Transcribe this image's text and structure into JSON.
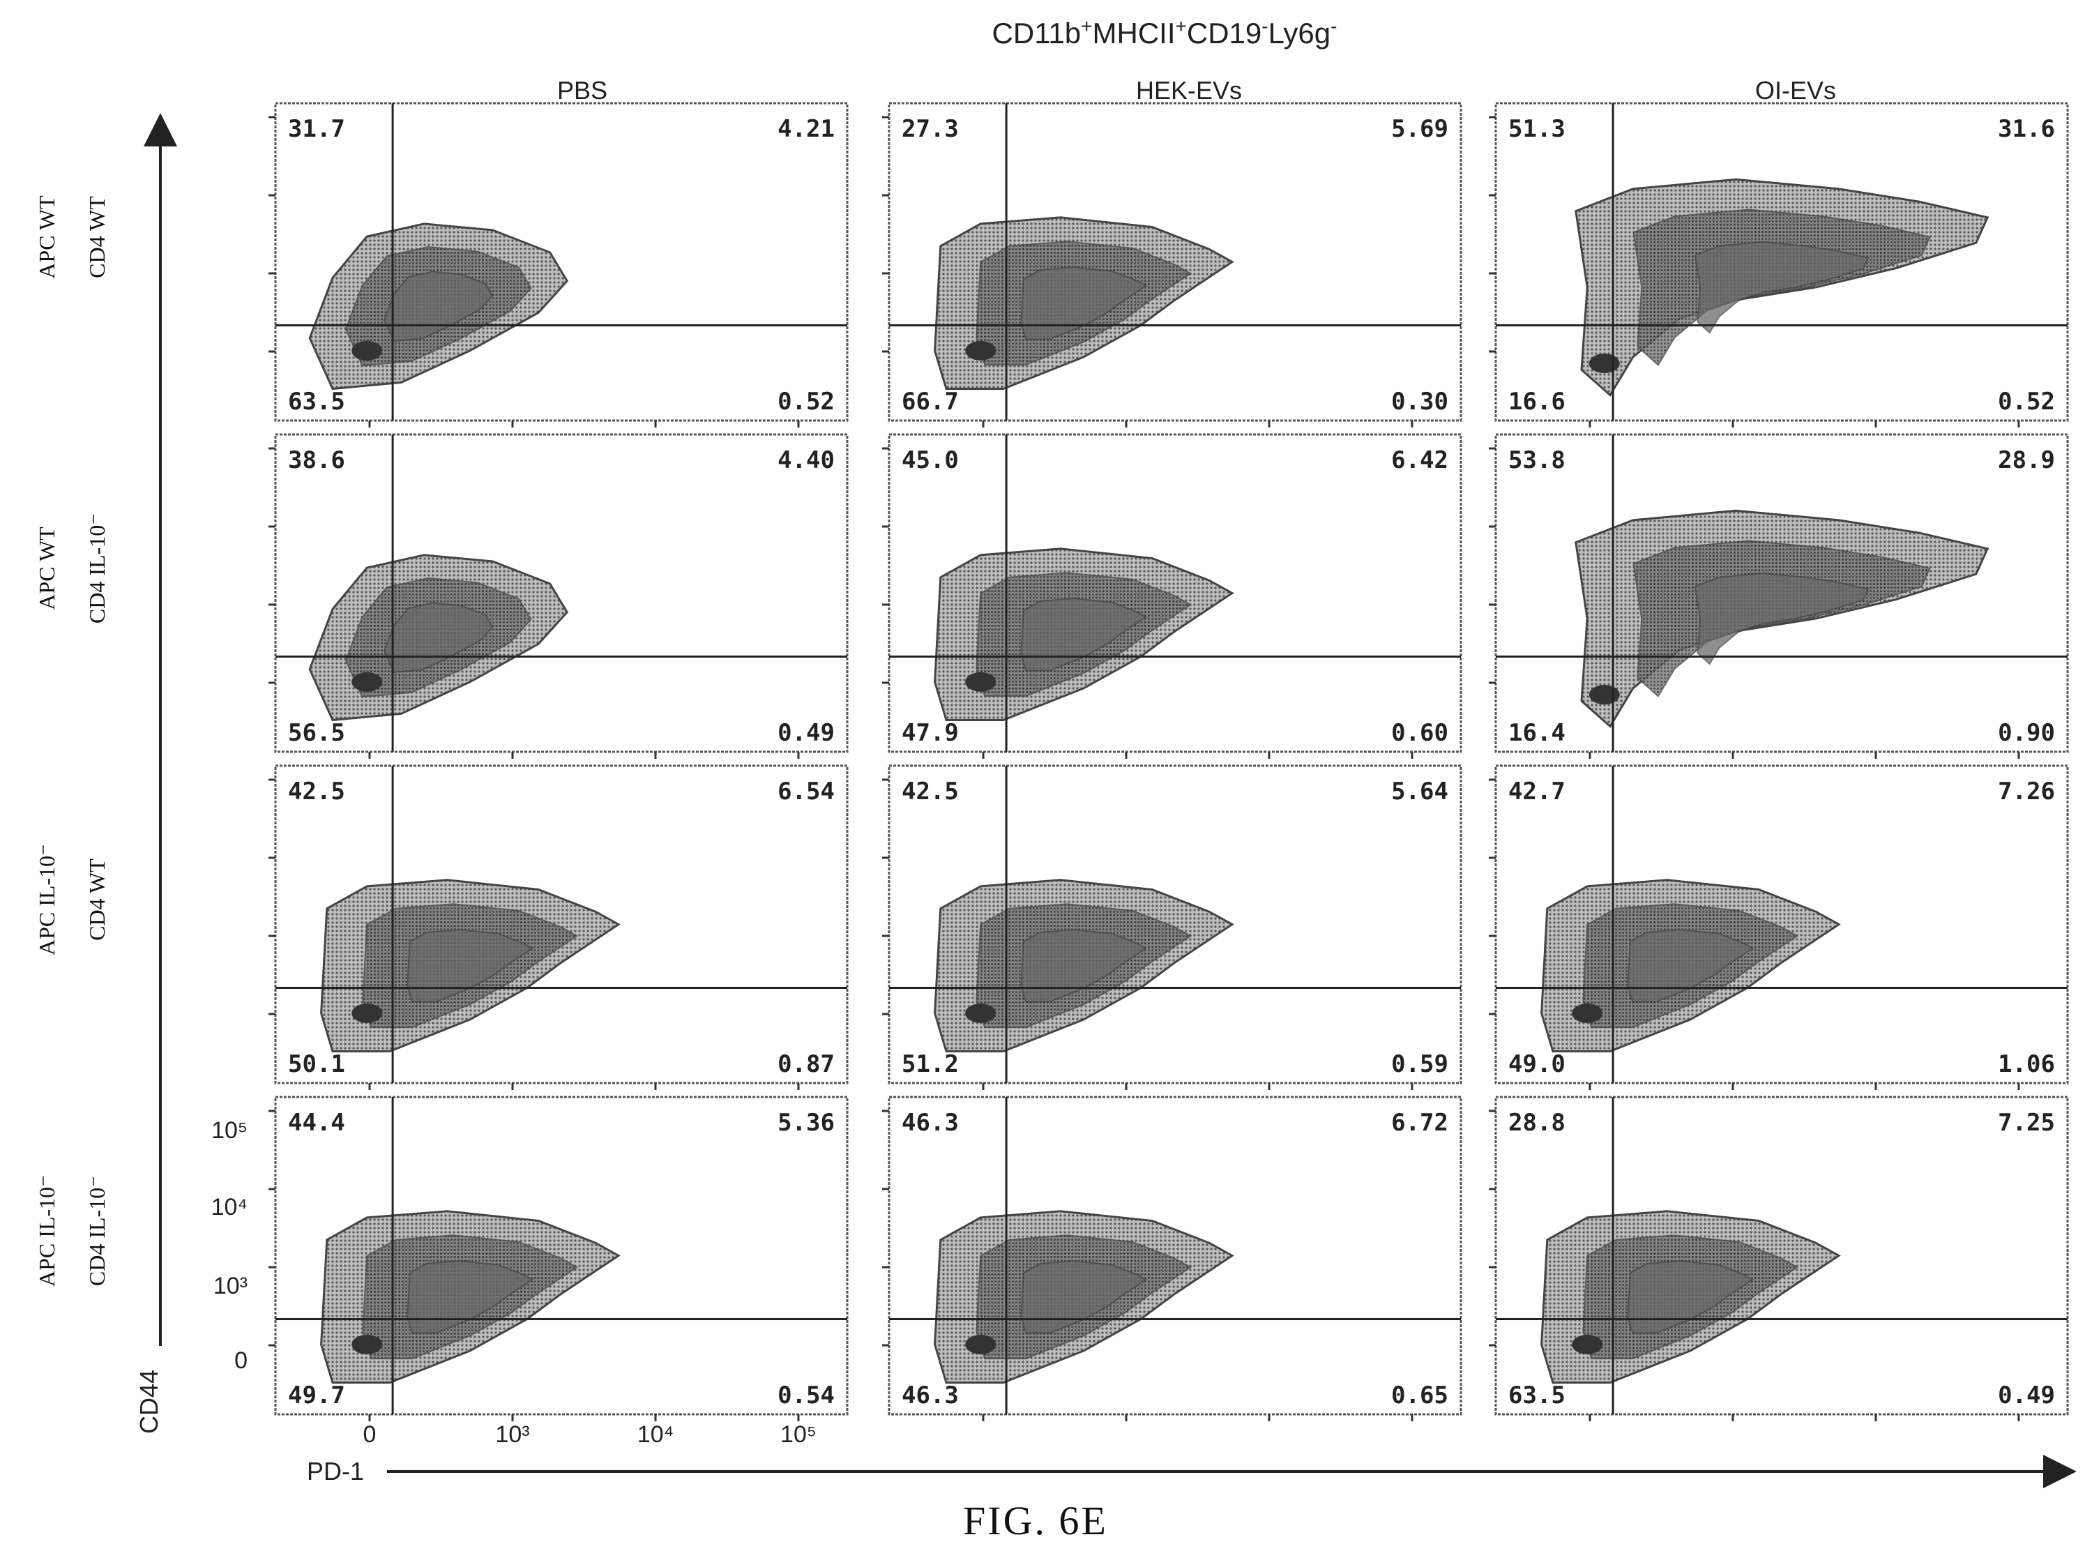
{
  "figure": {
    "title_parts": [
      "CD11b",
      "+",
      "MHCII",
      "+",
      "CD19",
      "-",
      "Ly6g",
      "-"
    ],
    "caption": "FIG. 6E",
    "x_axis_label": "PD-1",
    "y_axis_label": "CD44",
    "columns": [
      "PBS",
      "HEK-EVs",
      "OI-EVs"
    ],
    "rows": [
      {
        "line1": "APC WT",
        "line2": "CD4 WT"
      },
      {
        "line1": "APC WT",
        "line2": "CD4 IL-10⁻"
      },
      {
        "line1": "APC IL-10⁻",
        "line2": "CD4 WT"
      },
      {
        "line1": "APC IL-10⁻",
        "line2": "CD4 IL-10⁻"
      }
    ],
    "x_ticks": [
      "0",
      "10³",
      "10⁴",
      "10⁵"
    ],
    "y_ticks": [
      "0",
      "10³",
      "10⁴",
      "10⁵"
    ]
  },
  "chart_data": {
    "type": "scatter",
    "subtype": "flow-cytometry-contour-quadrant-grid",
    "title": "CD11b+MHCII+CD19-Ly6g-",
    "xlabel": "PD-1",
    "ylabel": "CD44",
    "columns": [
      "PBS",
      "HEK-EVs",
      "OI-EVs"
    ],
    "rows": [
      "APC WT / CD4 WT",
      "APC WT / CD4 IL-10-",
      "APC IL-10- / CD4 WT",
      "APC IL-10- / CD4 IL-10-"
    ],
    "quadrant_order": [
      "upper-left",
      "upper-right",
      "lower-left",
      "lower-right"
    ],
    "panels": [
      [
        {
          "ul": "31.7",
          "ur": "4.21",
          "ll": "63.5",
          "lr": "0.52"
        },
        {
          "ul": "27.3",
          "ur": "5.69",
          "ll": "66.7",
          "lr": "0.30"
        },
        {
          "ul": "51.3",
          "ur": "31.6",
          "ll": "16.6",
          "lr": "0.52"
        }
      ],
      [
        {
          "ul": "38.6",
          "ur": "4.40",
          "ll": "56.5",
          "lr": "0.49"
        },
        {
          "ul": "45.0",
          "ur": "6.42",
          "ll": "47.9",
          "lr": "0.60"
        },
        {
          "ul": "53.8",
          "ur": "28.9",
          "ll": "16.4",
          "lr": "0.90"
        }
      ],
      [
        {
          "ul": "42.5",
          "ur": "6.54",
          "ll": "50.1",
          "lr": "0.87"
        },
        {
          "ul": "42.5",
          "ur": "5.64",
          "ll": "51.2",
          "lr": "0.59"
        },
        {
          "ul": "42.7",
          "ur": "7.26",
          "ll": "49.0",
          "lr": "1.06"
        }
      ],
      [
        {
          "ul": "44.4",
          "ur": "5.36",
          "ll": "49.7",
          "lr": "0.54"
        },
        {
          "ul": "46.3",
          "ur": "6.72",
          "ll": "46.3",
          "lr": "0.65"
        },
        {
          "ul": "28.8",
          "ur": "7.25",
          "ll": "63.5",
          "lr": "0.49"
        }
      ]
    ],
    "colors": {
      "frame": "#555555",
      "gate": "#222222",
      "contour": "#444444",
      "fill_outer": "#9a9a9a",
      "fill_inner": "#5a5a5a"
    }
  }
}
